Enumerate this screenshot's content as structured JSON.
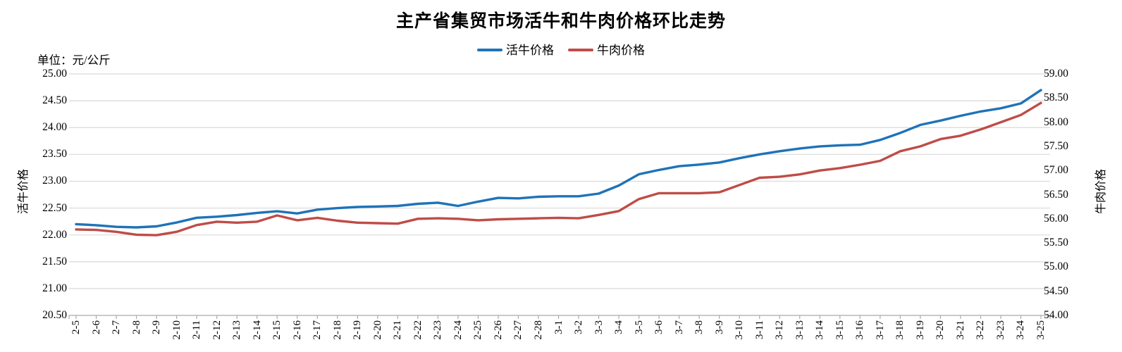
{
  "chart_data": {
    "type": "line",
    "title": "主产省集贸市场活牛和牛肉价格环比走势",
    "unit_label": "单位：元/公斤",
    "grid": true,
    "legend_position": "top",
    "categories": [
      "2-5",
      "2-6",
      "2-7",
      "2-8",
      "2-9",
      "2-10",
      "2-11",
      "2-12",
      "2-13",
      "2-14",
      "2-15",
      "2-16",
      "2-17",
      "2-18",
      "2-19",
      "2-20",
      "2-21",
      "2-22",
      "2-23",
      "2-24",
      "2-25",
      "2-26",
      "2-27",
      "2-28",
      "3-1",
      "3-2",
      "3-3",
      "3-4",
      "3-5",
      "3-6",
      "3-7",
      "3-8",
      "3-9",
      "3-10",
      "3-11",
      "3-12",
      "3-13",
      "3-14",
      "3-15",
      "3-16",
      "3-17",
      "3-18",
      "3-19",
      "3-20",
      "3-21",
      "3-22",
      "3-23",
      "3-24",
      "3-25"
    ],
    "series": [
      {
        "name": "活牛价格",
        "axis": "left",
        "color": "#1E73B8",
        "values": [
          22.2,
          22.18,
          22.15,
          22.14,
          22.16,
          22.23,
          22.32,
          22.34,
          22.37,
          22.41,
          22.44,
          22.4,
          22.47,
          22.5,
          22.52,
          22.53,
          22.54,
          22.58,
          22.6,
          22.54,
          22.62,
          22.69,
          22.68,
          22.71,
          22.72,
          22.72,
          22.77,
          22.92,
          23.13,
          23.21,
          23.28,
          23.31,
          23.35,
          23.43,
          23.5,
          23.56,
          23.61,
          23.65,
          23.67,
          23.68,
          23.77,
          23.9,
          24.05,
          24.13,
          24.22,
          24.3,
          24.36,
          24.45,
          24.7
        ]
      },
      {
        "name": "牛肉价格",
        "axis": "right",
        "color": "#BF4C47",
        "values": [
          55.78,
          55.77,
          55.73,
          55.67,
          55.66,
          55.73,
          55.87,
          55.94,
          55.92,
          55.94,
          56.07,
          55.97,
          56.02,
          55.96,
          55.92,
          55.91,
          55.9,
          56.0,
          56.01,
          56.0,
          55.97,
          55.99,
          56.0,
          56.01,
          56.02,
          56.01,
          56.08,
          56.16,
          56.41,
          56.53,
          56.53,
          56.53,
          56.55,
          56.7,
          56.85,
          56.87,
          56.92,
          57.0,
          57.05,
          57.12,
          57.2,
          57.4,
          57.5,
          57.65,
          57.72,
          57.85,
          58.0,
          58.15,
          58.4
        ]
      }
    ],
    "left_axis": {
      "title": "活牛价格",
      "min": 20.5,
      "max": 25.0,
      "step": 0.5,
      "labels": [
        "25.00",
        "24.50",
        "24.00",
        "23.50",
        "23.00",
        "22.50",
        "22.00",
        "21.50",
        "21.00",
        "20.50"
      ]
    },
    "right_axis": {
      "title": "牛肉价格",
      "min": 54.0,
      "max": 59.0,
      "step": 0.5,
      "labels": [
        "59.00",
        "58.50",
        "58.00",
        "57.50",
        "57.00",
        "56.50",
        "56.00",
        "55.50",
        "55.00",
        "54.50",
        "54.00"
      ]
    },
    "colors": {
      "gridline": "#D9D9D9",
      "axis_line": "#ABABAB",
      "tick": "#ABABAB"
    }
  }
}
